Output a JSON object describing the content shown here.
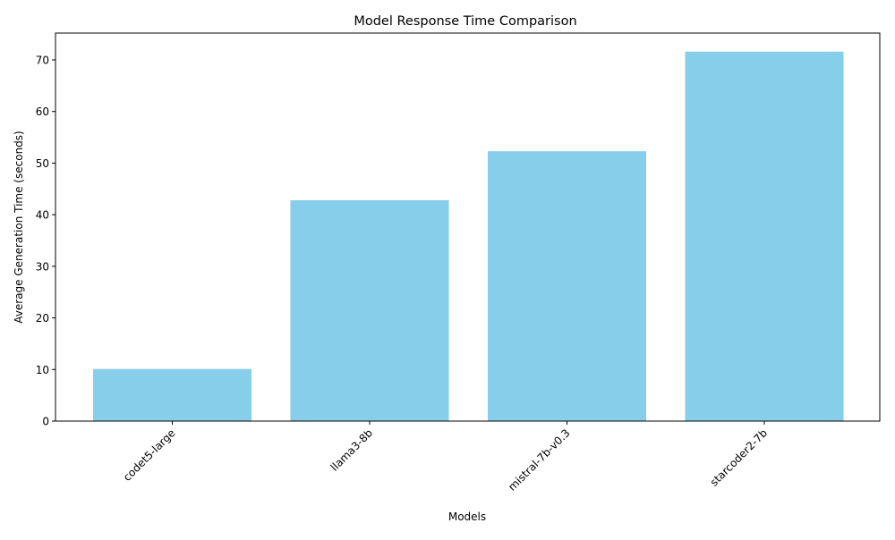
{
  "chart_data": {
    "type": "bar",
    "title": "Model Response Time Comparison",
    "xlabel": "Models",
    "ylabel": "Average Generation Time (seconds)",
    "categories": [
      "codet5-large",
      "llama3-8b",
      "mistral-7b-v0.3",
      "starcoder2-7b"
    ],
    "values": [
      10.1,
      42.8,
      52.3,
      71.6
    ],
    "ylim": [
      0,
      75.2
    ],
    "yticks": [
      0,
      10,
      20,
      30,
      40,
      50,
      60,
      70
    ],
    "bar_color": "#87ceeb",
    "grid": false,
    "legend": "none",
    "xtick_rotation": 45
  }
}
